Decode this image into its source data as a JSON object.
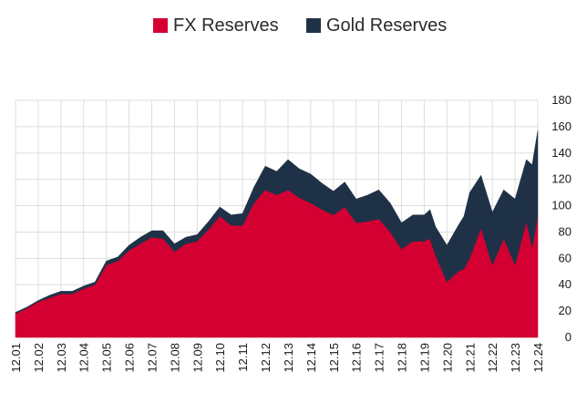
{
  "chart_data": {
    "type": "area",
    "stacked": true,
    "legend_position": "top",
    "grid": true,
    "y_axis_side": "right",
    "ylim": [
      0,
      180
    ],
    "y_ticks": [
      0,
      20,
      40,
      60,
      80,
      100,
      120,
      140,
      160,
      180
    ],
    "x_ticks": [
      "12.01",
      "12.02",
      "12.03",
      "12.04",
      "12.05",
      "12.06",
      "12.07",
      "12.08",
      "12.09",
      "12.10",
      "12.11",
      "12.12",
      "12.13",
      "12.14",
      "12.15",
      "12.16",
      "12.17",
      "12.18",
      "12.19",
      "12.20",
      "12.21",
      "12.22",
      "12.23",
      "12.24"
    ],
    "x": [
      2001.0,
      2001.5,
      2002.0,
      2002.5,
      2003.0,
      2003.5,
      2004.0,
      2004.5,
      2005.0,
      2005.5,
      2006.0,
      2006.5,
      2007.0,
      2007.5,
      2008.0,
      2008.5,
      2009.0,
      2009.5,
      2010.0,
      2010.5,
      2011.0,
      2011.5,
      2012.0,
      2012.5,
      2013.0,
      2013.5,
      2014.0,
      2014.5,
      2015.0,
      2015.5,
      2016.0,
      2016.5,
      2017.0,
      2017.5,
      2018.0,
      2018.5,
      2019.0,
      2019.25,
      2019.5,
      2020.0,
      2020.5,
      2020.75,
      2021.0,
      2021.5,
      2022.0,
      2022.5,
      2023.0,
      2023.5,
      2023.75,
      2024.0
    ],
    "series": [
      {
        "name": "FX Reserves",
        "color": "#d40032",
        "values": [
          18,
          22,
          27,
          30,
          33,
          33,
          37,
          40,
          55,
          58,
          66,
          71,
          76,
          75,
          65,
          71,
          73,
          82,
          92,
          85,
          85,
          102,
          112,
          108,
          112,
          106,
          102,
          97,
          93,
          99,
          87,
          88,
          90,
          80,
          67,
          73,
          73,
          75,
          62,
          42,
          50,
          52,
          60,
          83,
          55,
          75,
          55,
          88,
          68,
          92
        ]
      },
      {
        "name": "Gold Reserves",
        "color": "#1f3147",
        "values": [
          1,
          1,
          1,
          2,
          2,
          2,
          2,
          2,
          3,
          3,
          4,
          5,
          5,
          6,
          6,
          5,
          5,
          6,
          7,
          8,
          9,
          12,
          18,
          18,
          23,
          22,
          22,
          20,
          18,
          19,
          18,
          20,
          22,
          22,
          20,
          20,
          20,
          22,
          22,
          28,
          35,
          40,
          50,
          40,
          40,
          37,
          50,
          47,
          63,
          65
        ]
      }
    ]
  }
}
